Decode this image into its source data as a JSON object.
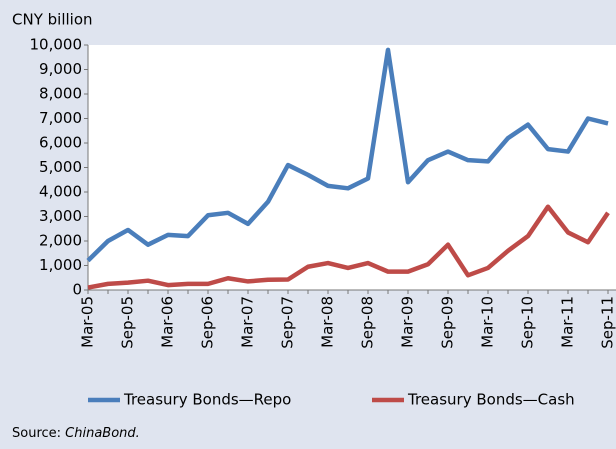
{
  "chart_data": {
    "type": "line",
    "y_axis_label": "CNY billion",
    "categories": [
      "Mar-05",
      null,
      "Sep-05",
      null,
      "Mar-06",
      null,
      "Sep-06",
      null,
      "Mar-07",
      null,
      "Sep-07",
      null,
      "Mar-08",
      null,
      "Sep-08",
      null,
      "Mar-09",
      null,
      "Sep-09",
      null,
      "Mar-10",
      null,
      "Sep-10",
      null,
      "Mar-11",
      null,
      "Sep-11"
    ],
    "series": [
      {
        "name": "Treasury Bonds—Repo",
        "color": "#4a7ebb",
        "values": [
          1200,
          2000,
          2450,
          1850,
          2250,
          2200,
          3050,
          3150,
          2700,
          3600,
          5100,
          4700,
          4250,
          4150,
          4550,
          9800,
          4400,
          5300,
          5650,
          5300,
          5250,
          6200,
          6750,
          5750,
          5650,
          7000,
          6800
        ]
      },
      {
        "name": "Treasury Bonds—Cash",
        "color": "#be4b48",
        "values": [
          100,
          250,
          300,
          380,
          200,
          250,
          250,
          480,
          350,
          420,
          430,
          950,
          1100,
          900,
          1100,
          750,
          750,
          1050,
          1850,
          600,
          900,
          1600,
          2200,
          3400,
          2350,
          1950,
          3150
        ]
      }
    ],
    "ylim": [
      0,
      10000
    ],
    "yticks": [
      0,
      {
        "value": 1000,
        "label": "1,000"
      },
      {
        "value": 2000,
        "label": "2,000"
      },
      {
        "value": 3000,
        "label": "3,000"
      },
      {
        "value": 4000,
        "label": "4,000"
      },
      {
        "value": 5000,
        "label": "5,000"
      },
      {
        "value": 6000,
        "label": "6,000"
      },
      {
        "value": 7000,
        "label": "7,000"
      },
      {
        "value": 8000,
        "label": "8,000"
      },
      {
        "value": 9000,
        "label": "9,000"
      },
      {
        "value": 10000,
        "label": "10,000"
      }
    ],
    "grid": false,
    "legend": "bottom",
    "source": {
      "label": "Source:",
      "name": "ChinaBond."
    }
  }
}
